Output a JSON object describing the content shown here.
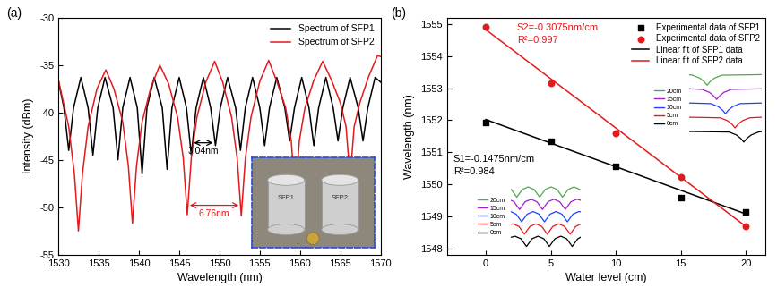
{
  "chart_data": [
    {
      "type": "line",
      "panel_label": "(a)",
      "x_label": "Wavelength (nm)",
      "y_label": "Intensity (dBm)",
      "xlim": [
        1530,
        1570
      ],
      "xticks": [
        1530,
        1535,
        1540,
        1545,
        1550,
        1555,
        1560,
        1565,
        1570
      ],
      "ylim": [
        -55,
        -30
      ],
      "yticks": [
        -55,
        -50,
        -45,
        -40,
        -35,
        -30
      ],
      "legend": "upper right",
      "series": [
        {
          "name": "Spectrum of SFP1",
          "color": "#000000",
          "x": [
            1530.0,
            1530.7,
            1531.3,
            1531.9,
            1532.8,
            1533.7,
            1534.3,
            1534.9,
            1535.8,
            1536.8,
            1537.4,
            1538.0,
            1538.9,
            1539.8,
            1540.4,
            1541.0,
            1541.9,
            1542.9,
            1543.5,
            1544.1,
            1545.0,
            1545.9,
            1546.5,
            1547.1,
            1548.0,
            1548.9,
            1549.5,
            1550.1,
            1551.0,
            1552.0,
            1552.6,
            1553.2,
            1554.1,
            1555.0,
            1555.6,
            1556.2,
            1557.1,
            1558.1,
            1558.7,
            1559.3,
            1560.2,
            1561.1,
            1561.7,
            1562.3,
            1563.2,
            1564.1,
            1564.7,
            1565.3,
            1566.2,
            1567.2,
            1567.8,
            1568.4,
            1569.3,
            1570.0
          ],
          "values": [
            -36.6,
            -39.5,
            -44.0,
            -39.5,
            -36.3,
            -39.5,
            -44.5,
            -39.5,
            -36.3,
            -39.5,
            -45.0,
            -39.5,
            -36.3,
            -39.5,
            -46.5,
            -39.5,
            -36.3,
            -39.5,
            -46.0,
            -39.5,
            -36.3,
            -39.5,
            -44.5,
            -39.5,
            -36.3,
            -39.5,
            -43.5,
            -39.5,
            -36.3,
            -39.5,
            -44.0,
            -39.5,
            -36.3,
            -39.5,
            -43.5,
            -39.5,
            -36.3,
            -39.5,
            -43.0,
            -39.5,
            -36.3,
            -39.5,
            -43.5,
            -39.5,
            -36.3,
            -39.5,
            -43.0,
            -39.5,
            -36.3,
            -39.5,
            -43.0,
            -39.5,
            -36.3,
            -36.8
          ]
        },
        {
          "name": "Spectrum of SFP2",
          "color": "#e31a1c",
          "x": [
            1530.0,
            1531.3,
            1532.0,
            1532.5,
            1533.0,
            1533.7,
            1534.8,
            1535.9,
            1536.9,
            1538.0,
            1538.7,
            1539.2,
            1539.7,
            1540.4,
            1541.5,
            1542.6,
            1543.7,
            1544.8,
            1545.5,
            1546.0,
            1546.5,
            1547.2,
            1548.3,
            1549.4,
            1550.4,
            1551.5,
            1552.2,
            1552.7,
            1553.2,
            1553.9,
            1555.0,
            1556.1,
            1557.1,
            1558.2,
            1558.9,
            1559.4,
            1559.9,
            1560.6,
            1561.7,
            1562.8,
            1563.9,
            1565.0,
            1565.7,
            1566.2,
            1566.7,
            1567.4,
            1568.5,
            1569.6,
            1570.0
          ],
          "values": [
            -36.5,
            -41.5,
            -46.5,
            -52.5,
            -46.5,
            -41.5,
            -37.5,
            -35.5,
            -37.5,
            -41.0,
            -45.7,
            -51.7,
            -45.7,
            -41.0,
            -37.3,
            -35.0,
            -37.0,
            -40.5,
            -44.8,
            -50.8,
            -44.8,
            -40.5,
            -36.8,
            -34.6,
            -36.8,
            -40.5,
            -44.9,
            -50.9,
            -44.9,
            -40.5,
            -36.7,
            -34.5,
            -36.7,
            -39.5,
            -43.0,
            -49.0,
            -43.0,
            -39.5,
            -36.6,
            -34.6,
            -36.6,
            -39.0,
            -41.5,
            -47.0,
            -41.5,
            -39.0,
            -36.2,
            -34.0,
            -34.1
          ]
        }
      ],
      "annotations": [
        {
          "text": "3.04nm",
          "color": "#000000",
          "span": [
            1546.5,
            1549.5
          ],
          "y": -43.2
        },
        {
          "text": "6.76nm",
          "color": "#e31a1c",
          "span": [
            1546.0,
            1552.7
          ],
          "y": -49.8
        }
      ],
      "inset_photo": {
        "labels": [
          "SFP1",
          "SFP2"
        ]
      }
    },
    {
      "type": "scatter",
      "panel_label": "(b)",
      "x_label": "Water level (cm)",
      "y_label": "Wavelength (nm)",
      "xlim": [
        -3,
        21.5
      ],
      "xticks": [
        0,
        5,
        10,
        15,
        20
      ],
      "ylim": [
        1547.8,
        1555.2
      ],
      "yticks": [
        1548,
        1549,
        1550,
        1551,
        1552,
        1553,
        1554,
        1555
      ],
      "legend": "upper right",
      "series": [
        {
          "name": "Experimental data of SFP1",
          "type": "scatter",
          "marker": "square",
          "color": "#000000",
          "x": [
            0,
            5,
            10,
            15,
            20
          ],
          "values": [
            1551.92,
            1551.35,
            1550.55,
            1549.58,
            1549.12
          ]
        },
        {
          "name": "Experimental data of SFP2",
          "type": "scatter",
          "marker": "circle",
          "color": "#e31a1c",
          "x": [
            0,
            5,
            10,
            15,
            20
          ],
          "values": [
            1554.92,
            1553.15,
            1551.58,
            1550.22,
            1548.68
          ]
        },
        {
          "name": "Linear fit of SFP1 data",
          "type": "line",
          "line_style": "solid",
          "color": "#000000",
          "x": [
            0,
            20
          ],
          "values": [
            1552.02,
            1549.07
          ]
        },
        {
          "name": "Linear fit of SFP2 data",
          "type": "line",
          "line_style": "solid",
          "color": "#e31a1c",
          "x": [
            0,
            20
          ],
          "values": [
            1554.83,
            1548.68
          ]
        }
      ],
      "annotations": [
        {
          "text": "S2=-0.3075nm/cm",
          "color": "#e31a1c"
        },
        {
          "text": "R²=0.997",
          "color": "#e31a1c"
        },
        {
          "text": "S1=-0.1475nm/cm",
          "color": "#000000"
        },
        {
          "text": "R²=0.984",
          "color": "#000000"
        }
      ],
      "insets": [
        {
          "type": "line",
          "tick_labels": false,
          "xlim": [
            0,
            10
          ],
          "ylim": [
            -0.1,
            1.1
          ],
          "series": [
            {
              "name": "20cm",
              "color": "#4fa84a",
              "x": [
                0,
                0.5,
                1.5,
                2.1,
                2.5,
                2.9,
                3.5,
                4.5,
                10
              ],
              "values": [
                0.9,
                0.85,
                0.6,
                0.3,
                0,
                0.3,
                0.6,
                0.85,
                0.9
              ]
            },
            {
              "name": "15cm",
              "color": "#a020c8",
              "x": [
                0,
                1.8,
                2.8,
                3.4,
                3.8,
                4.2,
                4.8,
                5.8,
                10
              ],
              "values": [
                0.9,
                0.85,
                0.6,
                0.3,
                0,
                0.3,
                0.6,
                0.85,
                0.9
              ]
            },
            {
              "name": "10cm",
              "color": "#1f3fff",
              "x": [
                0,
                3.0,
                4.0,
                4.6,
                5.0,
                5.4,
                6.0,
                7.0,
                10
              ],
              "values": [
                0.9,
                0.85,
                0.6,
                0.3,
                0,
                0.3,
                0.6,
                0.85,
                0.9
              ]
            },
            {
              "name": "5cm",
              "color": "#e31a1c",
              "x": [
                0,
                4.3,
                5.3,
                5.9,
                6.3,
                6.7,
                7.3,
                8.3,
                10
              ],
              "values": [
                0.9,
                0.85,
                0.6,
                0.3,
                0,
                0.3,
                0.6,
                0.85,
                0.9
              ]
            },
            {
              "name": "0cm",
              "color": "#000000",
              "x": [
                0,
                5.5,
                6.5,
                7.1,
                7.5,
                7.9,
                8.5,
                9.5,
                10
              ],
              "values": [
                0.9,
                0.85,
                0.6,
                0.3,
                0,
                0.3,
                0.6,
                0.85,
                0.9
              ]
            }
          ]
        },
        {
          "type": "line",
          "tick_labels": false,
          "xlim": [
            0,
            10
          ],
          "ylim": [
            -0.1,
            1.1
          ],
          "series": [
            {
              "name": "20cm",
              "color": "#4fa84a",
              "x": [
                0,
                0.8,
                1.6,
                2.45,
                3.3,
                4.1,
                4.9,
                5.75,
                6.6,
                7.4,
                8.2,
                9.05,
                9.9,
                10
              ],
              "values": [
                0.75,
                0,
                0.75,
                1.0,
                0.75,
                0,
                0.75,
                1.0,
                0.75,
                0,
                0.75,
                1.0,
                0.75,
                0.7
              ]
            },
            {
              "name": "15cm",
              "color": "#a020c8",
              "x": [
                0,
                0.4,
                1.2,
                2.0,
                2.85,
                3.7,
                4.5,
                5.3,
                6.15,
                7.0,
                7.8,
                8.6,
                9.45,
                10
              ],
              "values": [
                0.88,
                0.75,
                0,
                0.75,
                1.0,
                0.75,
                0,
                0.75,
                1.0,
                0.75,
                0,
                0.75,
                1.0,
                0.9
              ]
            },
            {
              "name": "10cm",
              "color": "#1f3fff",
              "x": [
                0,
                0.7,
                1.5,
                2.3,
                3.15,
                4.0,
                4.8,
                5.6,
                6.45,
                7.3,
                8.1,
                8.9,
                9.75,
                10
              ],
              "values": [
                0.97,
                0.75,
                0,
                0.75,
                1.0,
                0.75,
                0,
                0.75,
                1.0,
                0.75,
                0,
                0.75,
                1.0,
                0.97
              ]
            },
            {
              "name": "5cm",
              "color": "#e31a1c",
              "x": [
                0,
                0.25,
                1.1,
                1.9,
                2.7,
                3.55,
                4.4,
                5.2,
                6.0,
                6.85,
                7.7,
                8.5,
                9.3,
                10
              ],
              "values": [
                0.97,
                1.0,
                0.75,
                0,
                0.75,
                1.0,
                0.75,
                0,
                0.75,
                1.0,
                0.75,
                0,
                0.75,
                0.97
              ]
            },
            {
              "name": "0cm",
              "color": "#000000",
              "x": [
                0,
                0.55,
                1.4,
                2.2,
                3.0,
                3.85,
                4.7,
                5.5,
                6.3,
                7.15,
                8.0,
                8.8,
                9.6,
                10
              ],
              "values": [
                0.9,
                1.0,
                0.75,
                0,
                0.75,
                1.0,
                0.75,
                0,
                0.75,
                1.0,
                0.75,
                0,
                0.75,
                0.9
              ]
            }
          ]
        }
      ]
    }
  ]
}
